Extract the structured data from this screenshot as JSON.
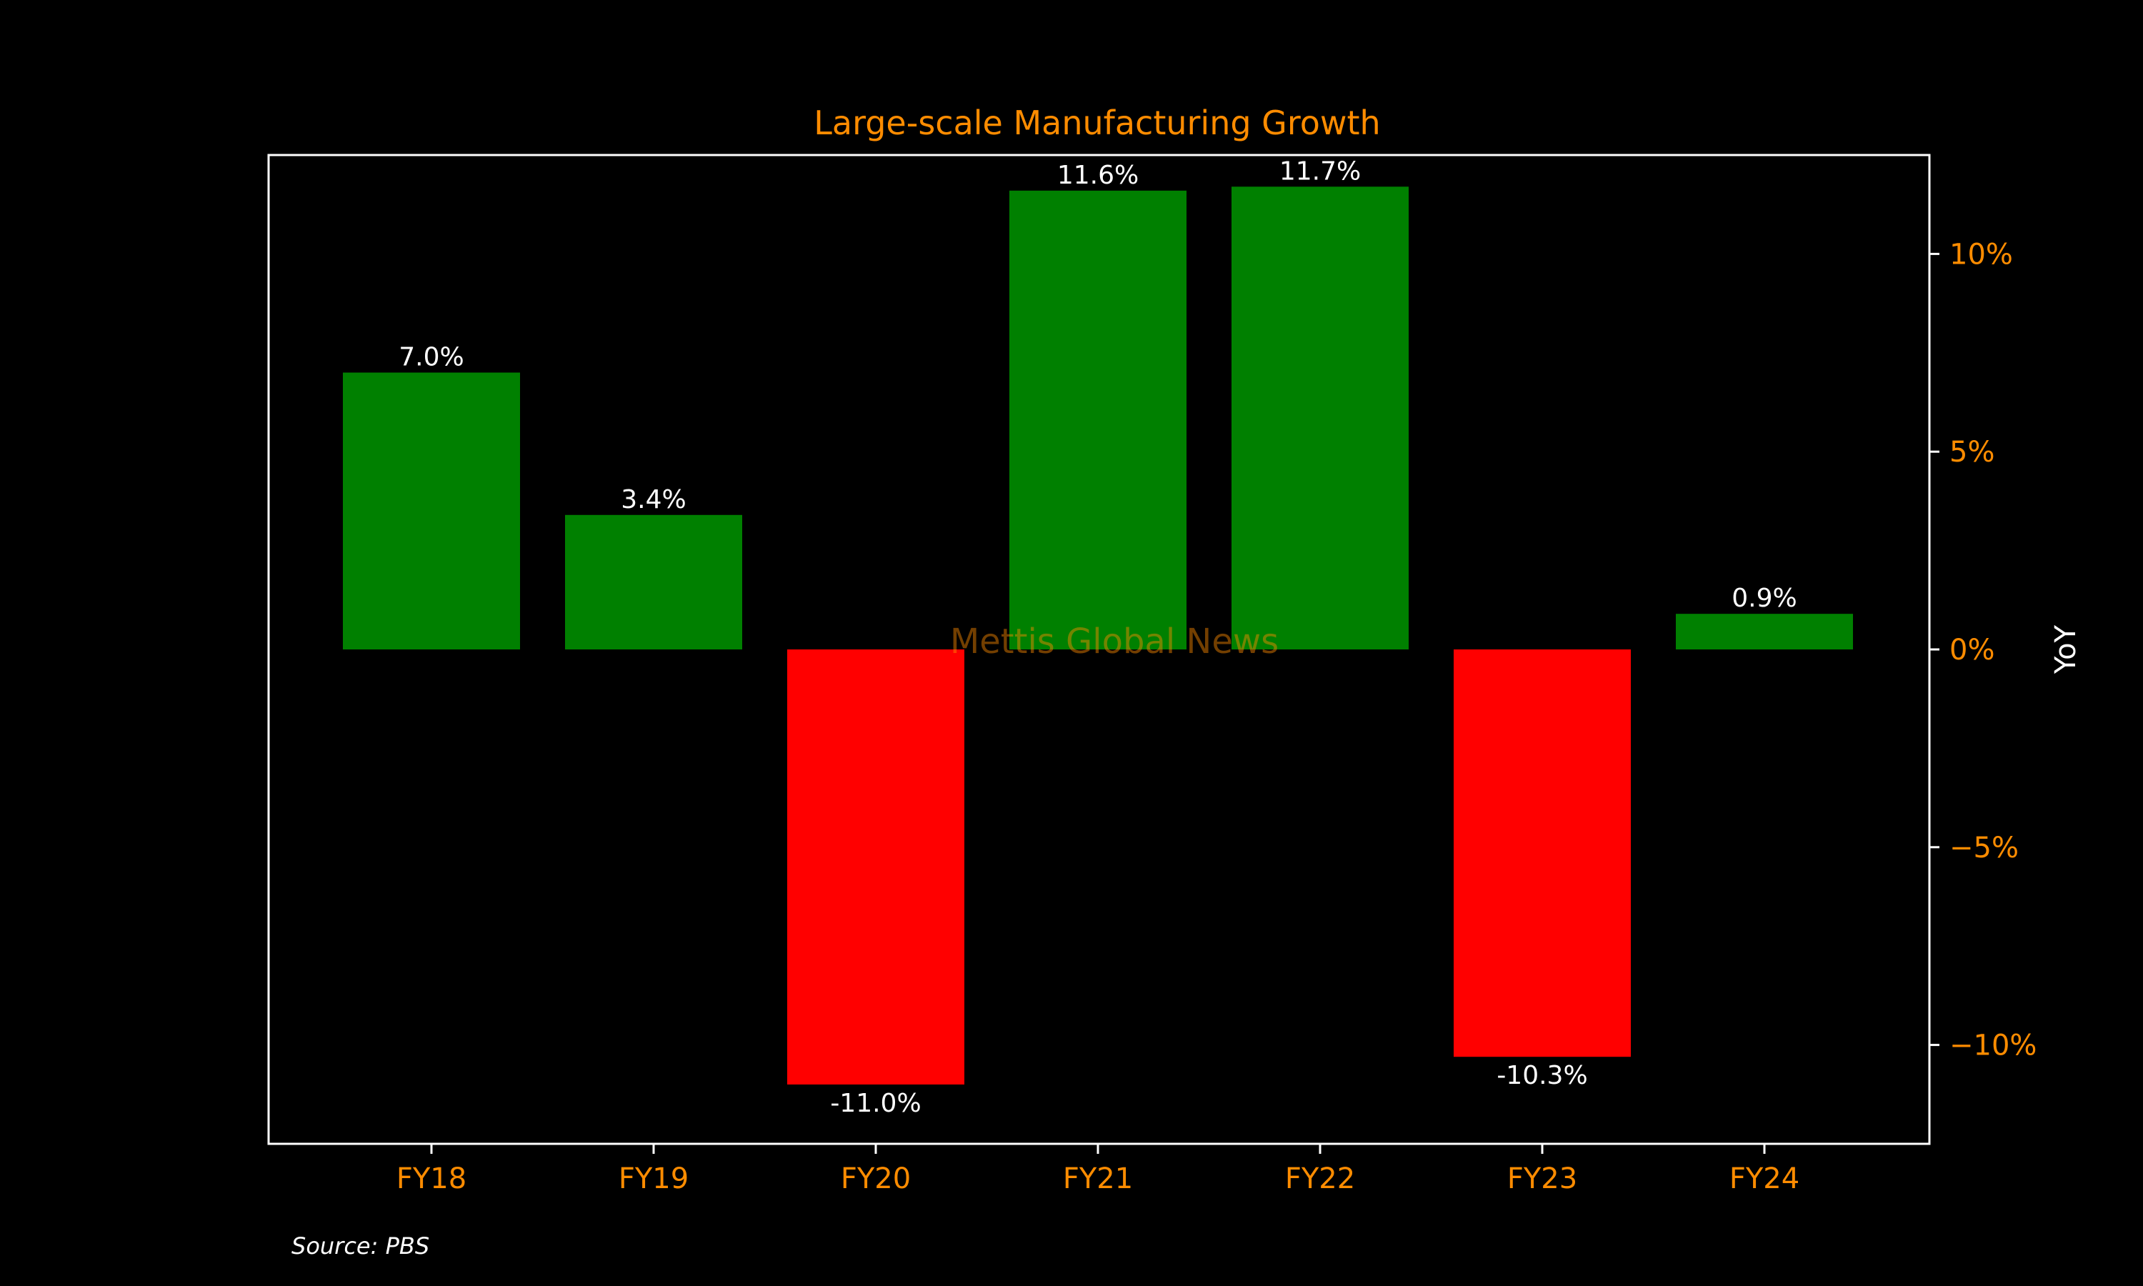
{
  "chart_data": {
    "type": "bar",
    "title": "Large-scale Manufacturing Growth",
    "categories": [
      "FY18",
      "FY19",
      "FY20",
      "FY21",
      "FY22",
      "FY23",
      "FY24"
    ],
    "values": [
      7.0,
      3.4,
      -11.0,
      11.6,
      11.7,
      -10.3,
      0.9
    ],
    "value_labels": [
      "7.0%",
      "3.4%",
      "-11.0%",
      "11.6%",
      "11.7%",
      "-10.3%",
      "0.9%"
    ],
    "ylabel": "YoY",
    "y_axis_side": "right",
    "ylim": [
      -12.5,
      12.5
    ],
    "yticks": [
      -10,
      -5,
      0,
      5,
      10
    ],
    "ytick_labels": [
      "−10%",
      "−5%",
      "0%",
      "5%",
      "10%"
    ],
    "grid": false,
    "colors": {
      "positive": "#008000",
      "negative": "#FF0000",
      "background": "#000000",
      "accent": "#FF8C00",
      "frame": "#FFFFFF"
    }
  },
  "watermark": "Mettis Global News",
  "source": "Source: PBS"
}
